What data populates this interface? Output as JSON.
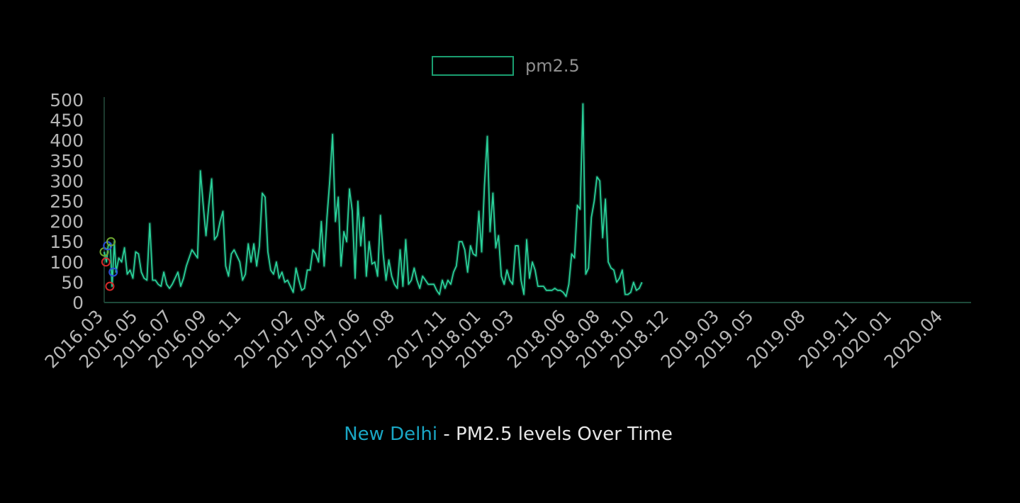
{
  "legend": {
    "label": "pm2.5",
    "color": "#1a9e70"
  },
  "caption": {
    "city": "New Delhi",
    "rest": " - PM2.5 levels Over Time",
    "city_color": "#1aa6c4"
  },
  "chart_data": {
    "type": "line",
    "title": "New Delhi - PM2.5 levels Over Time",
    "xlabel": "",
    "ylabel": "",
    "ylim": [
      0,
      500
    ],
    "yticks": [
      0,
      50,
      100,
      150,
      200,
      250,
      300,
      350,
      400,
      450,
      500
    ],
    "xlim": [
      "2016-03-01",
      "2020-05-20"
    ],
    "xticks": [
      "2016.03",
      "2016.05",
      "2016.07",
      "2016.09",
      "2016.11",
      "2017.02",
      "2017.04",
      "2017.06",
      "2017.08",
      "2017.11",
      "2018.01",
      "2018.03",
      "2018.06",
      "2018.08",
      "2018.10",
      "2018.12",
      "2019.03",
      "2019.05",
      "2019.08",
      "2019.11",
      "2020.01",
      "2020.04"
    ],
    "grid": false,
    "legend_position": "top-center",
    "series": [
      {
        "name": "pm2.5",
        "color": "#2ad19a",
        "points": [
          [
            "2016-03-01",
            125
          ],
          [
            "2016-03-05",
            100
          ],
          [
            "2016-03-08",
            140
          ],
          [
            "2016-03-12",
            145
          ],
          [
            "2016-03-15",
            40
          ],
          [
            "2016-03-19",
            150
          ],
          [
            "2016-03-22",
            75
          ],
          [
            "2016-03-27",
            110
          ],
          [
            "2016-04-01",
            100
          ],
          [
            "2016-04-06",
            135
          ],
          [
            "2016-04-11",
            70
          ],
          [
            "2016-04-16",
            80
          ],
          [
            "2016-04-21",
            60
          ],
          [
            "2016-04-26",
            125
          ],
          [
            "2016-05-01",
            120
          ],
          [
            "2016-05-06",
            75
          ],
          [
            "2016-05-11",
            60
          ],
          [
            "2016-05-16",
            55
          ],
          [
            "2016-05-21",
            195
          ],
          [
            "2016-05-26",
            55
          ],
          [
            "2016-05-31",
            55
          ],
          [
            "2016-06-05",
            45
          ],
          [
            "2016-06-10",
            40
          ],
          [
            "2016-06-15",
            75
          ],
          [
            "2016-06-20",
            45
          ],
          [
            "2016-06-25",
            35
          ],
          [
            "2016-06-30",
            45
          ],
          [
            "2016-07-05",
            60
          ],
          [
            "2016-07-10",
            75
          ],
          [
            "2016-07-15",
            40
          ],
          [
            "2016-07-20",
            60
          ],
          [
            "2016-07-25",
            90
          ],
          [
            "2016-07-30",
            110
          ],
          [
            "2016-08-04",
            130
          ],
          [
            "2016-08-09",
            120
          ],
          [
            "2016-08-14",
            110
          ],
          [
            "2016-08-19",
            325
          ],
          [
            "2016-08-24",
            240
          ],
          [
            "2016-08-29",
            165
          ],
          [
            "2016-09-03",
            240
          ],
          [
            "2016-09-08",
            305
          ],
          [
            "2016-09-13",
            155
          ],
          [
            "2016-09-18",
            165
          ],
          [
            "2016-09-23",
            200
          ],
          [
            "2016-09-28",
            225
          ],
          [
            "2016-10-03",
            90
          ],
          [
            "2016-10-08",
            65
          ],
          [
            "2016-10-13",
            120
          ],
          [
            "2016-10-18",
            130
          ],
          [
            "2016-10-23",
            115
          ],
          [
            "2016-10-28",
            100
          ],
          [
            "2016-11-02",
            55
          ],
          [
            "2016-11-07",
            70
          ],
          [
            "2016-11-12",
            145
          ],
          [
            "2016-11-17",
            100
          ],
          [
            "2016-11-22",
            145
          ],
          [
            "2016-11-27",
            90
          ],
          [
            "2016-12-02",
            140
          ],
          [
            "2016-12-07",
            270
          ],
          [
            "2016-12-12",
            260
          ],
          [
            "2016-12-17",
            125
          ],
          [
            "2016-12-22",
            80
          ],
          [
            "2016-12-27",
            70
          ],
          [
            "2017-01-01",
            100
          ],
          [
            "2017-01-06",
            60
          ],
          [
            "2017-01-11",
            75
          ],
          [
            "2017-01-16",
            50
          ],
          [
            "2017-01-21",
            55
          ],
          [
            "2017-01-26",
            40
          ],
          [
            "2017-01-31",
            25
          ],
          [
            "2017-02-05",
            85
          ],
          [
            "2017-02-10",
            55
          ],
          [
            "2017-02-15",
            30
          ],
          [
            "2017-02-20",
            35
          ],
          [
            "2017-02-25",
            80
          ],
          [
            "2017-03-02",
            80
          ],
          [
            "2017-03-07",
            130
          ],
          [
            "2017-03-12",
            120
          ],
          [
            "2017-03-17",
            100
          ],
          [
            "2017-03-22",
            200
          ],
          [
            "2017-03-27",
            90
          ],
          [
            "2017-04-01",
            210
          ],
          [
            "2017-04-06",
            300
          ],
          [
            "2017-04-11",
            415
          ],
          [
            "2017-04-16",
            200
          ],
          [
            "2017-04-21",
            260
          ],
          [
            "2017-04-26",
            90
          ],
          [
            "2017-05-01",
            175
          ],
          [
            "2017-05-06",
            150
          ],
          [
            "2017-05-11",
            280
          ],
          [
            "2017-05-16",
            225
          ],
          [
            "2017-05-21",
            60
          ],
          [
            "2017-05-26",
            250
          ],
          [
            "2017-05-31",
            140
          ],
          [
            "2017-06-05",
            210
          ],
          [
            "2017-06-10",
            65
          ],
          [
            "2017-06-15",
            150
          ],
          [
            "2017-06-20",
            95
          ],
          [
            "2017-06-25",
            100
          ],
          [
            "2017-06-30",
            65
          ],
          [
            "2017-07-05",
            215
          ],
          [
            "2017-07-10",
            120
          ],
          [
            "2017-07-15",
            55
          ],
          [
            "2017-07-20",
            105
          ],
          [
            "2017-07-25",
            65
          ],
          [
            "2017-07-30",
            45
          ],
          [
            "2017-08-04",
            35
          ],
          [
            "2017-08-09",
            130
          ],
          [
            "2017-08-14",
            40
          ],
          [
            "2017-08-19",
            155
          ],
          [
            "2017-08-24",
            45
          ],
          [
            "2017-08-29",
            55
          ],
          [
            "2017-09-03",
            85
          ],
          [
            "2017-09-08",
            55
          ],
          [
            "2017-09-13",
            35
          ],
          [
            "2017-09-18",
            65
          ],
          [
            "2017-09-23",
            55
          ],
          [
            "2017-09-28",
            45
          ],
          [
            "2017-10-03",
            45
          ],
          [
            "2017-10-08",
            45
          ],
          [
            "2017-10-13",
            30
          ],
          [
            "2017-10-18",
            20
          ],
          [
            "2017-10-23",
            55
          ],
          [
            "2017-10-28",
            35
          ],
          [
            "2017-11-02",
            55
          ],
          [
            "2017-11-07",
            45
          ],
          [
            "2017-11-12",
            75
          ],
          [
            "2017-11-17",
            90
          ],
          [
            "2017-11-22",
            150
          ],
          [
            "2017-11-27",
            150
          ],
          [
            "2017-12-02",
            130
          ],
          [
            "2017-12-07",
            75
          ],
          [
            "2017-12-12",
            140
          ],
          [
            "2017-12-17",
            120
          ],
          [
            "2017-12-22",
            115
          ],
          [
            "2017-12-27",
            225
          ],
          [
            "2018-01-01",
            125
          ],
          [
            "2018-01-06",
            290
          ],
          [
            "2018-01-11",
            410
          ],
          [
            "2018-01-16",
            175
          ],
          [
            "2018-01-21",
            270
          ],
          [
            "2018-01-26",
            135
          ],
          [
            "2018-01-31",
            165
          ],
          [
            "2018-02-05",
            65
          ],
          [
            "2018-02-10",
            45
          ],
          [
            "2018-02-15",
            80
          ],
          [
            "2018-02-20",
            55
          ],
          [
            "2018-02-25",
            45
          ],
          [
            "2018-03-02",
            140
          ],
          [
            "2018-03-07",
            140
          ],
          [
            "2018-03-12",
            55
          ],
          [
            "2018-03-17",
            20
          ],
          [
            "2018-03-22",
            155
          ],
          [
            "2018-03-27",
            60
          ],
          [
            "2018-04-01",
            100
          ],
          [
            "2018-04-06",
            80
          ],
          [
            "2018-04-11",
            40
          ],
          [
            "2018-04-16",
            40
          ],
          [
            "2018-04-21",
            40
          ],
          [
            "2018-04-26",
            30
          ],
          [
            "2018-05-01",
            30
          ],
          [
            "2018-05-06",
            30
          ],
          [
            "2018-05-11",
            35
          ],
          [
            "2018-05-16",
            30
          ],
          [
            "2018-05-21",
            30
          ],
          [
            "2018-05-26",
            25
          ],
          [
            "2018-05-31",
            15
          ],
          [
            "2018-06-05",
            45
          ],
          [
            "2018-06-10",
            120
          ],
          [
            "2018-06-15",
            110
          ],
          [
            "2018-06-20",
            240
          ],
          [
            "2018-06-25",
            230
          ],
          [
            "2018-06-30",
            490
          ],
          [
            "2018-07-05",
            70
          ],
          [
            "2018-07-10",
            85
          ],
          [
            "2018-07-15",
            210
          ],
          [
            "2018-07-20",
            250
          ],
          [
            "2018-07-25",
            310
          ],
          [
            "2018-07-30",
            300
          ],
          [
            "2018-08-04",
            160
          ],
          [
            "2018-08-09",
            255
          ],
          [
            "2018-08-14",
            100
          ],
          [
            "2018-08-19",
            85
          ],
          [
            "2018-08-24",
            80
          ],
          [
            "2018-08-29",
            50
          ],
          [
            "2018-09-03",
            60
          ],
          [
            "2018-09-08",
            80
          ],
          [
            "2018-09-13",
            20
          ],
          [
            "2018-09-18",
            20
          ],
          [
            "2018-09-23",
            25
          ],
          [
            "2018-09-28",
            50
          ],
          [
            "2018-10-03",
            30
          ],
          [
            "2018-10-08",
            35
          ],
          [
            "2018-10-13",
            50
          ]
        ]
      }
    ],
    "annotations": [
      {
        "date": "2016-03-01",
        "value": 125,
        "color": "#6ea832"
      },
      {
        "date": "2016-03-04",
        "value": 100,
        "color": "#d42a2a"
      },
      {
        "date": "2016-03-07",
        "value": 140,
        "color": "#2a4fd6"
      },
      {
        "date": "2016-03-11",
        "value": 40,
        "color": "#d42a2a"
      },
      {
        "date": "2016-03-13",
        "value": 150,
        "color": "#6ea832"
      },
      {
        "date": "2016-03-17",
        "value": 75,
        "color": "#2a4fd6"
      }
    ]
  }
}
